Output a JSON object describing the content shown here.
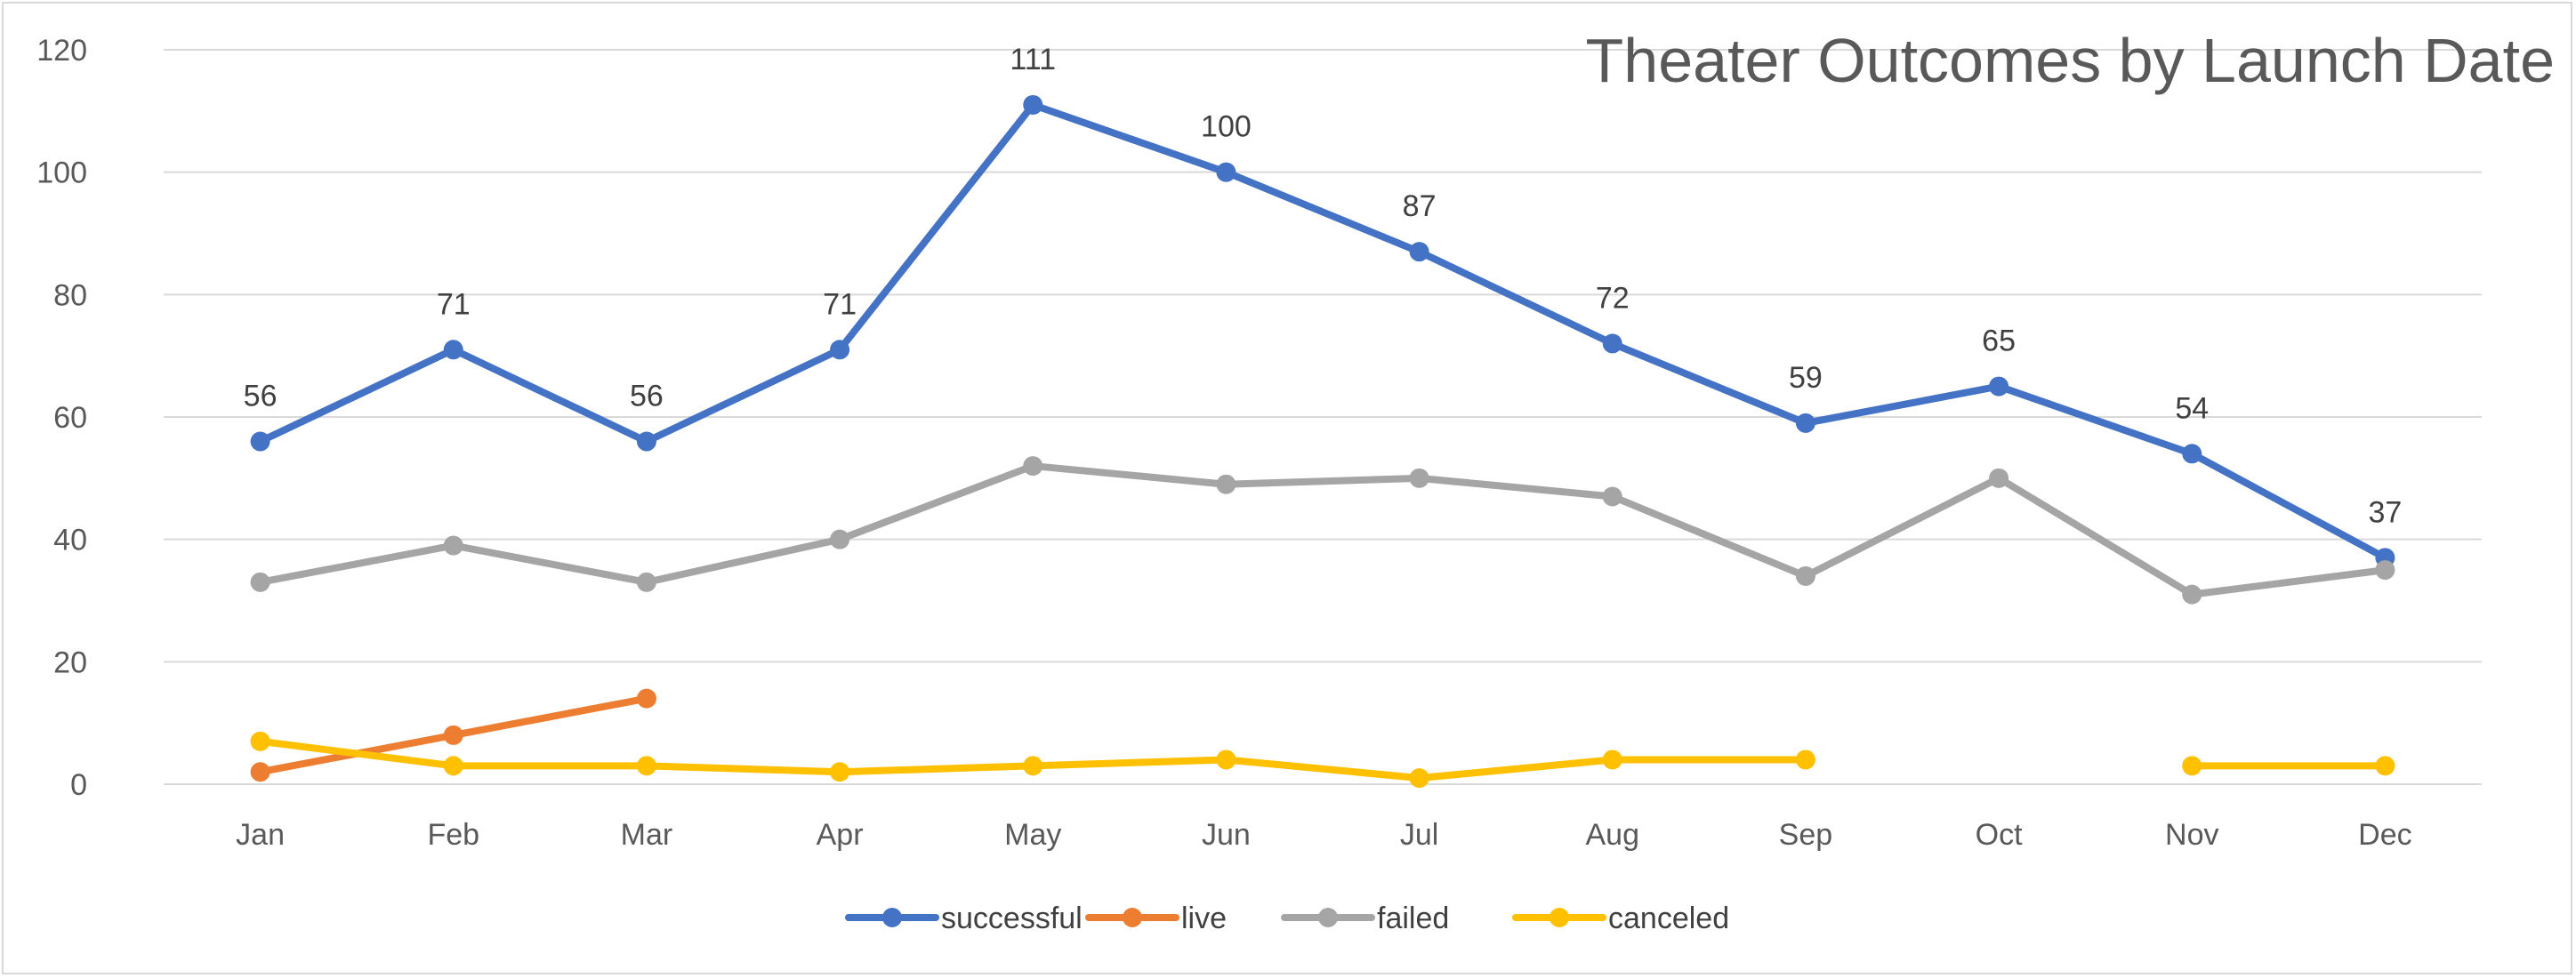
{
  "chart_data": {
    "type": "line",
    "title": "Theater Outcomes by Launch Date",
    "xlabel": "",
    "ylabel": "",
    "categories": [
      "Jan",
      "Feb",
      "Mar",
      "Apr",
      "May",
      "Jun",
      "Jul",
      "Aug",
      "Sep",
      "Oct",
      "Nov",
      "Dec"
    ],
    "ylim": [
      0,
      120
    ],
    "yticks": [
      "0",
      "20",
      "40",
      "60",
      "80",
      "100",
      "120"
    ],
    "grid": "horizontal",
    "legend_position": "bottom",
    "series": [
      {
        "name": "successful",
        "color": "#4472C4",
        "values": [
          56,
          71,
          56,
          71,
          111,
          100,
          87,
          72,
          59,
          65,
          54,
          37
        ],
        "show_data_labels": true
      },
      {
        "name": "live",
        "color": "#ED7D31",
        "values": [
          2,
          8,
          14,
          null,
          null,
          null,
          null,
          null,
          null,
          null,
          null,
          null
        ],
        "show_data_labels": false
      },
      {
        "name": "failed",
        "color": "#A5A5A5",
        "values": [
          33,
          39,
          33,
          40,
          52,
          49,
          50,
          47,
          34,
          50,
          31,
          35
        ],
        "show_data_labels": false
      },
      {
        "name": "canceled",
        "color": "#FFC000",
        "values": [
          7,
          3,
          3,
          2,
          3,
          4,
          1,
          4,
          4,
          null,
          3,
          3
        ],
        "show_data_labels": false
      }
    ]
  }
}
